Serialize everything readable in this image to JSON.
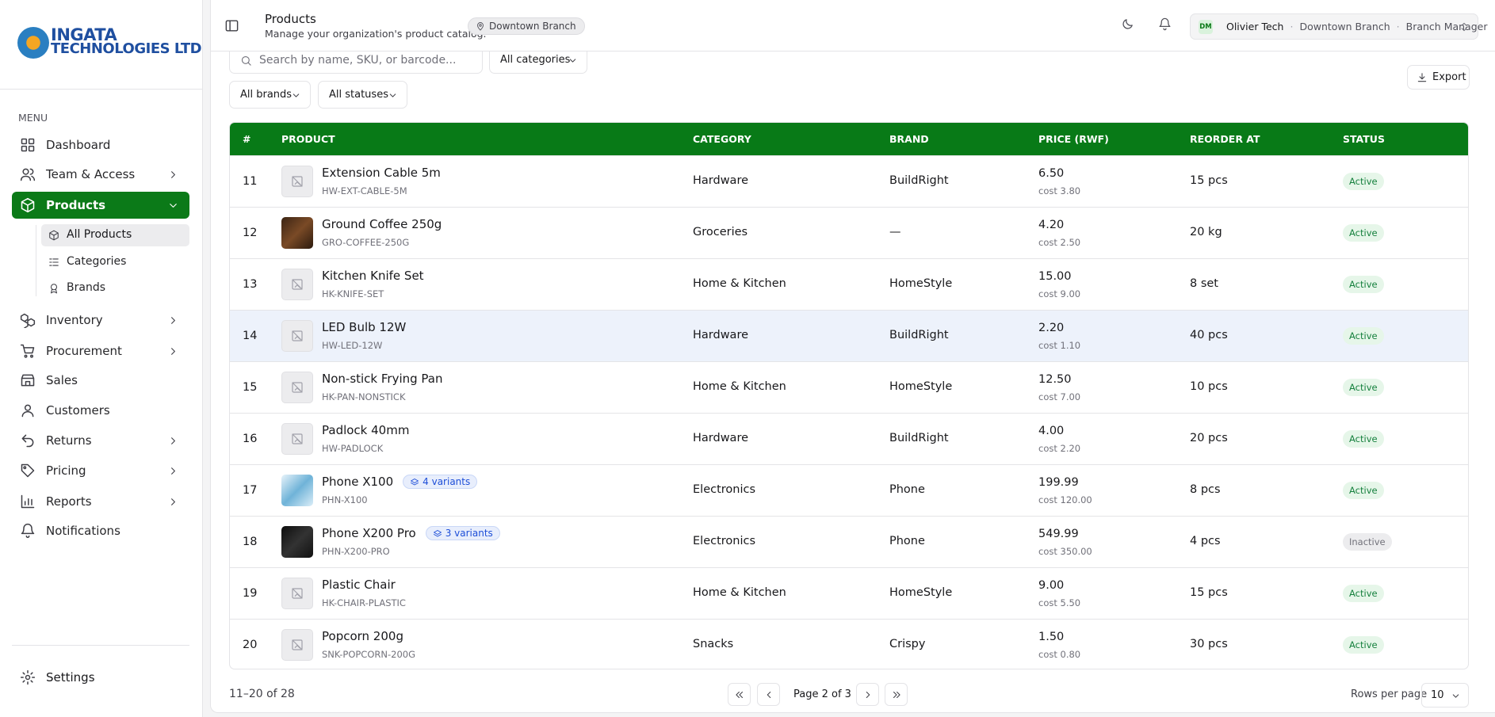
{
  "sidebar": {
    "logo_lines": [
      "INGATA",
      "TECHNOLOGIES LTD"
    ],
    "menu_label": "MENU",
    "items": [
      "Dashboard",
      "Team & Access",
      "Products",
      "Inventory",
      "Procurement",
      "Sales",
      "Customers",
      "Returns",
      "Pricing",
      "Reports",
      "Notifications"
    ],
    "sub_items": [
      "All Products",
      "Categories",
      "Brands"
    ],
    "footer_item": "Settings"
  },
  "header": {
    "title": "Products",
    "subtitle": "Manage your organization's product catalog.",
    "branch_badge": "Downtown Branch",
    "user": {
      "initials": "DM",
      "name": "Olivier Tech",
      "branch": "Downtown Branch",
      "role": "Branch Manager"
    }
  },
  "filters": {
    "search_placeholder": "Search by name, SKU, or barcode...",
    "category": "All categories",
    "brand": "All brands",
    "status": "All statuses",
    "export": "Export"
  },
  "table": {
    "columns": [
      "#",
      "PRODUCT",
      "CATEGORY",
      "BRAND",
      "PRICE (RWF)",
      "REORDER AT",
      "STATUS"
    ],
    "rows": [
      {
        "number": "11",
        "name": "Extension Cable 5m",
        "sku": "HW-EXT-CABLE-5M",
        "category": "Hardware",
        "brand": "BuildRight",
        "price": "6.50",
        "cost": "cost 3.80",
        "reorder": "15 pcs",
        "status": "Active"
      },
      {
        "number": "12",
        "name": "Ground Coffee 250g",
        "sku": "GRO-COFFEE-250G",
        "category": "Groceries",
        "brand": "—",
        "price": "4.20",
        "cost": "cost 2.50",
        "reorder": "20 kg",
        "status": "Active"
      },
      {
        "number": "13",
        "name": "Kitchen Knife Set",
        "sku": "HK-KNIFE-SET",
        "category": "Home & Kitchen",
        "brand": "HomeStyle",
        "price": "15.00",
        "cost": "cost 9.00",
        "reorder": "8 set",
        "status": "Active"
      },
      {
        "number": "14",
        "name": "LED Bulb 12W",
        "sku": "HW-LED-12W",
        "category": "Hardware",
        "brand": "BuildRight",
        "price": "2.20",
        "cost": "cost 1.10",
        "reorder": "40 pcs",
        "status": "Active"
      },
      {
        "number": "15",
        "name": "Non-stick Frying Pan",
        "sku": "HK-PAN-NONSTICK",
        "category": "Home & Kitchen",
        "brand": "HomeStyle",
        "price": "12.50",
        "cost": "cost 7.00",
        "reorder": "10 pcs",
        "status": "Active"
      },
      {
        "number": "16",
        "name": "Padlock 40mm",
        "sku": "HW-PADLOCK",
        "category": "Hardware",
        "brand": "BuildRight",
        "price": "4.00",
        "cost": "cost 2.20",
        "reorder": "20 pcs",
        "status": "Active"
      },
      {
        "number": "17",
        "name": "Phone X100",
        "sku": "PHN-X100",
        "variants": "4 variants",
        "category": "Electronics",
        "brand": "Phone",
        "price": "199.99",
        "cost": "cost 120.00",
        "reorder": "8 pcs",
        "status": "Active"
      },
      {
        "number": "18",
        "name": "Phone X200 Pro",
        "sku": "PHN-X200-PRO",
        "variants": "3 variants",
        "category": "Electronics",
        "brand": "Phone",
        "price": "549.99",
        "cost": "cost 350.00",
        "reorder": "4 pcs",
        "status": "Inactive"
      },
      {
        "number": "19",
        "name": "Plastic Chair",
        "sku": "HK-CHAIR-PLASTIC",
        "category": "Home & Kitchen",
        "brand": "HomeStyle",
        "price": "9.00",
        "cost": "cost 5.50",
        "reorder": "15 pcs",
        "status": "Active"
      },
      {
        "number": "20",
        "name": "Popcorn 200g",
        "sku": "SNK-POPCORN-200G",
        "category": "Snacks",
        "brand": "Crispy",
        "price": "1.50",
        "cost": "cost 0.80",
        "reorder": "30 pcs",
        "status": "Active"
      }
    ]
  },
  "pagination": {
    "range": "11–20 of 28",
    "page": "Page 2 of 3",
    "rows_per_page_label": "Rows per page",
    "rows_per_page": "10"
  }
}
